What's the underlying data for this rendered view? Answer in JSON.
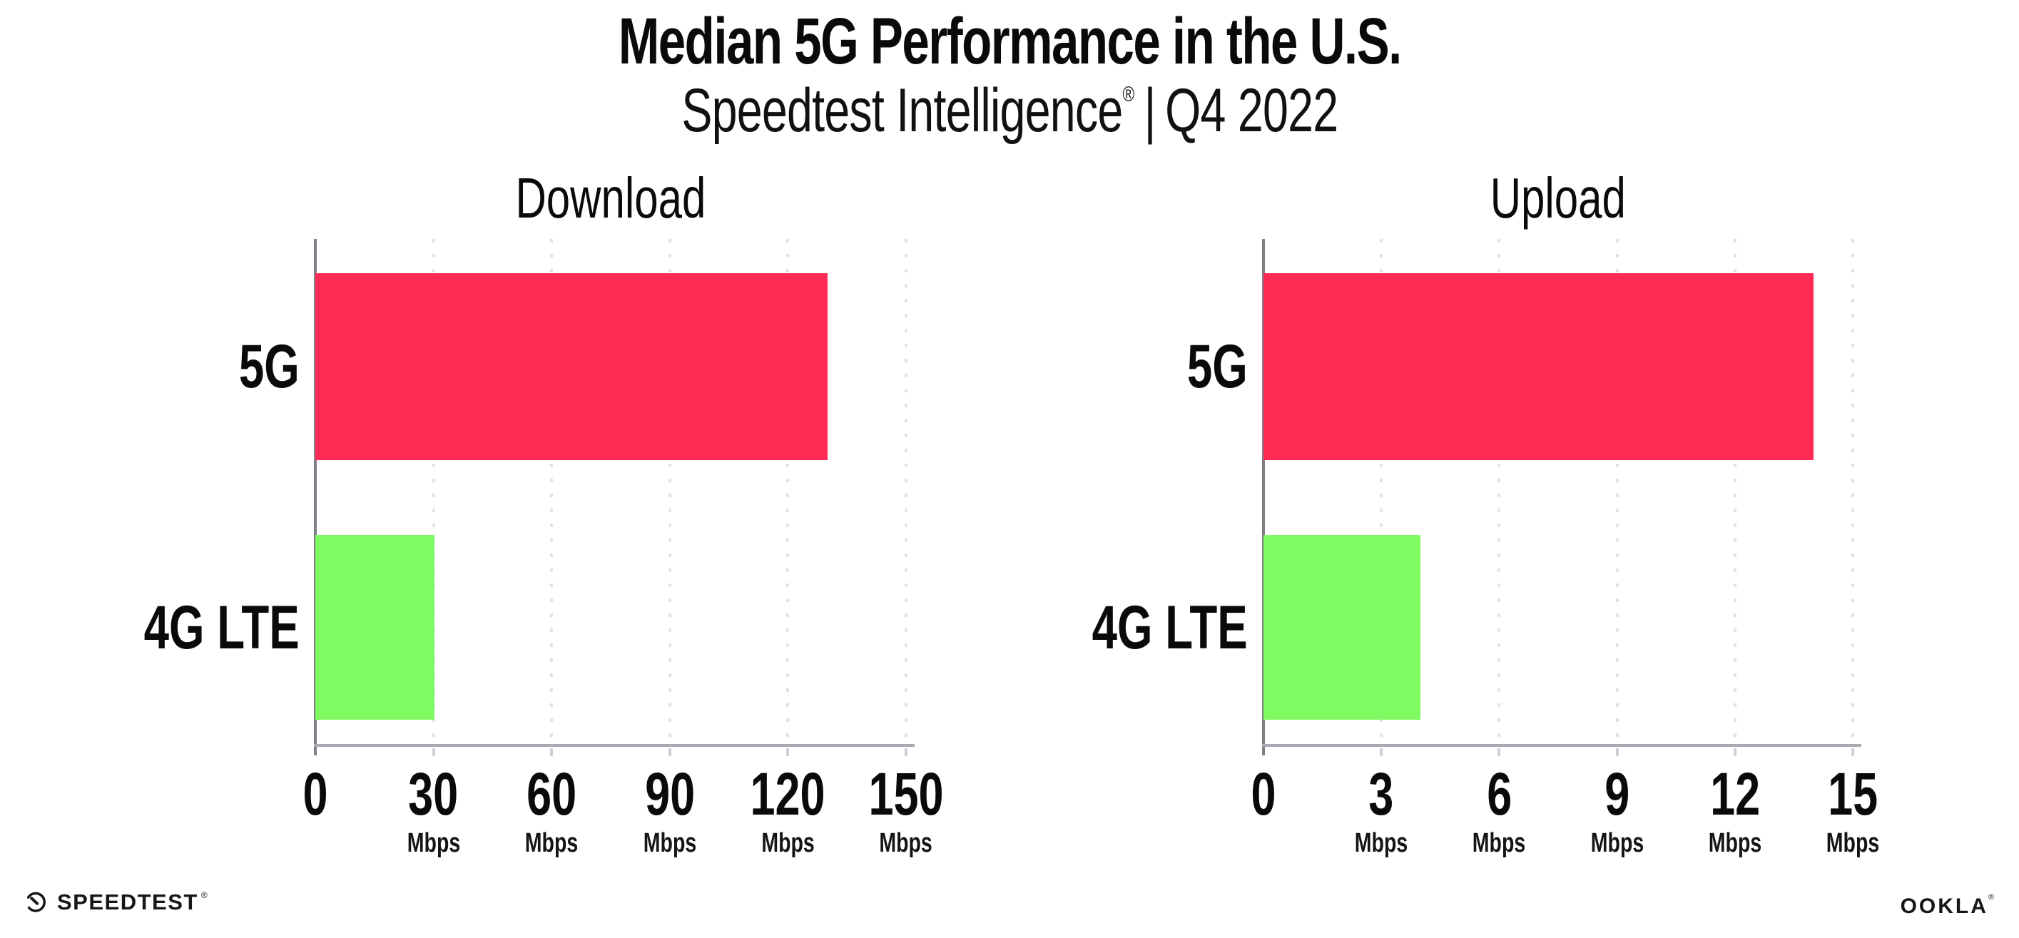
{
  "header": {
    "title": "Median 5G Performance in the U.S.",
    "subtitle": {
      "product": "Speedtest Intelligence",
      "reg": "®",
      "separator": "|",
      "period": "Q4 2022"
    }
  },
  "chart_data": [
    {
      "type": "bar",
      "orientation": "horizontal",
      "title": "Download",
      "categories": [
        "5G",
        "4G LTE"
      ],
      "values": [
        130,
        30.3
      ],
      "unit": "Mbps",
      "xlim": [
        0,
        150
      ],
      "ticks": [
        0,
        30,
        60,
        90,
        120,
        150
      ],
      "tick_unit_label": "Mbps",
      "grid": "dotted-vertical",
      "legend": "none",
      "bar_colors": [
        "#ff2b55",
        "#80fa62"
      ]
    },
    {
      "type": "bar",
      "orientation": "horizontal",
      "title": "Upload",
      "categories": [
        "5G",
        "4G LTE"
      ],
      "values": [
        14,
        4
      ],
      "unit": "Mbps",
      "xlim": [
        0,
        15
      ],
      "ticks": [
        0,
        3,
        6,
        9,
        12,
        15
      ],
      "tick_unit_label": "Mbps",
      "grid": "dotted-vertical",
      "legend": "none",
      "bar_colors": [
        "#ff2b55",
        "#80fa62"
      ]
    }
  ],
  "footer": {
    "left_brand": "SPEEDTEST",
    "left_reg": "®",
    "gauge_icon": "speedtest-gauge",
    "right_brand": "OOKLA",
    "right_reg": "®"
  },
  "colors": {
    "bar_5g": "#ff2b55",
    "bar_4g_lte": "#80fa62",
    "x_axis": "#a9a9b1",
    "y_axis": "#7f7f87",
    "grid_dot": "#e2e1ea",
    "text": "#0a0a0a"
  }
}
